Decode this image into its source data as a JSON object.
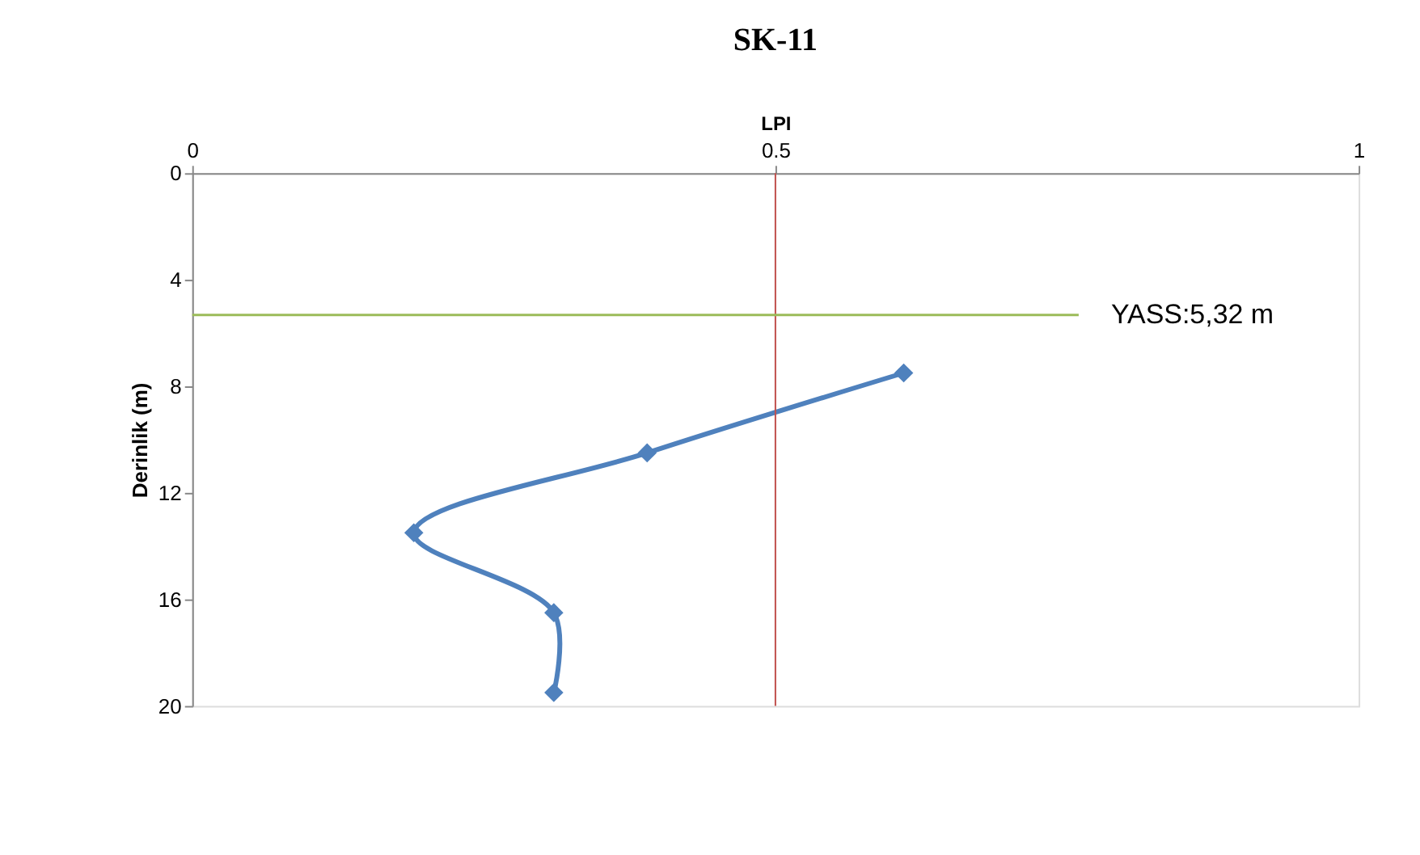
{
  "chart_data": {
    "type": "line",
    "title": "SK-11",
    "xlabel": "LPI",
    "ylabel": "Derinlik (m)",
    "series": [
      {
        "color": "#4f81bd",
        "x": [
          0.61,
          0.39,
          0.19,
          0.31,
          0.31
        ],
        "values": [
          7.5,
          10.5,
          13.5,
          16.5,
          19.5
        ]
      }
    ],
    "xlim": [
      0,
      1
    ],
    "xticks": [
      0,
      0.5,
      1
    ],
    "ylim": [
      20,
      0
    ],
    "yticks": [
      0,
      4,
      8,
      12,
      16,
      20
    ],
    "ref_lines": [
      {
        "axis": "x",
        "value": 0.5,
        "color": "#c0504d"
      },
      {
        "axis": "y",
        "value": 5.32,
        "label": "YASS:5,32 m",
        "color": "#9bbb59"
      }
    ],
    "marker": "diamond",
    "line_style": "solid",
    "grid": false
  }
}
